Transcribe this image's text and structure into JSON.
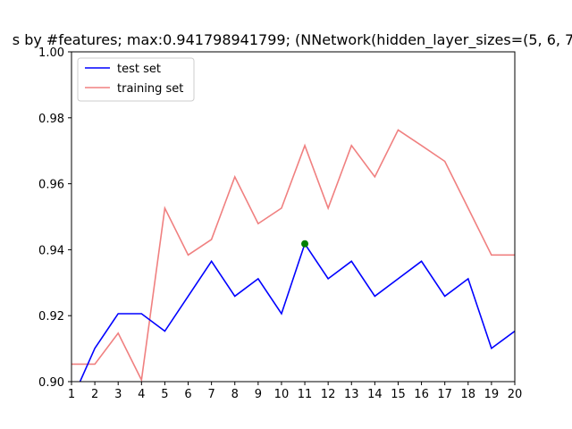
{
  "chart_data": {
    "type": "line",
    "title": "s by #features; max:0.941798941799; (NNetwork(hidden_layer_sizes=(5, 6, 7",
    "xlabel": "",
    "ylabel": "",
    "xlim": [
      1,
      20
    ],
    "ylim": [
      0.9,
      1.0
    ],
    "xticks": [
      1,
      2,
      3,
      4,
      5,
      6,
      7,
      8,
      9,
      10,
      11,
      12,
      13,
      14,
      15,
      16,
      17,
      18,
      19,
      20
    ],
    "xtick_labels": [
      "1",
      "2",
      "3",
      "4",
      "5",
      "6",
      "7",
      "8",
      "9",
      "10",
      "11",
      "12",
      "13",
      "14",
      "15",
      "16",
      "17",
      "18",
      "19",
      "20"
    ],
    "yticks": [
      0.9,
      0.92,
      0.94,
      0.96,
      0.98,
      1.0
    ],
    "ytick_labels": [
      "0.90",
      "0.92",
      "0.94",
      "0.96",
      "0.98",
      "1.00"
    ],
    "grid": false,
    "legend_position": "top-left",
    "series": [
      {
        "name": "test set",
        "color": "#0000ff",
        "x": [
          1,
          2,
          3,
          4,
          5,
          6,
          7,
          8,
          9,
          10,
          11,
          12,
          13,
          14,
          15,
          16,
          17,
          18,
          19,
          20
        ],
        "y": [
          0.8942,
          0.9101,
          0.9206,
          0.9206,
          0.9153,
          0.9259,
          0.9365,
          0.9259,
          0.9312,
          0.9206,
          0.9418,
          0.9312,
          0.9365,
          0.9259,
          0.9312,
          0.9365,
          0.9259,
          0.9312,
          0.9101,
          0.9153
        ]
      },
      {
        "name": "training set",
        "color": "#f08080",
        "x": [
          1,
          2,
          3,
          4,
          5,
          6,
          7,
          8,
          9,
          10,
          11,
          12,
          13,
          14,
          15,
          16,
          17,
          18,
          19,
          20
        ],
        "y": [
          0.9053,
          0.9053,
          0.9147,
          0.9005,
          0.9526,
          0.9384,
          0.9431,
          0.9621,
          0.9479,
          0.9526,
          0.9716,
          0.9526,
          0.9716,
          0.9621,
          0.9763,
          0.9716,
          0.9668,
          0.9526,
          0.9384,
          0.9384
        ]
      }
    ],
    "annotations": [
      {
        "type": "point",
        "x": 11,
        "y": 0.9418,
        "color": "#008000"
      }
    ]
  }
}
